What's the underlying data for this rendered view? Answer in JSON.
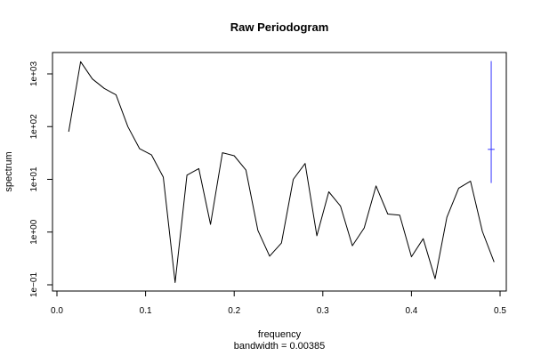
{
  "chart_data": {
    "type": "line",
    "title": "Raw Periodogram",
    "xlabel": "frequency",
    "sublabel": "bandwidth = 0.00385",
    "ylabel": "spectrum",
    "x_scale": "linear",
    "y_scale": "log",
    "xlim": [
      0,
      0.5
    ],
    "ylim": [
      0.1,
      1000
    ],
    "x_ticks": [
      0,
      0.1,
      0.2,
      0.3,
      0.4,
      0.5
    ],
    "x_tick_labels": [
      "0.0",
      "0.1",
      "0.2",
      "0.3",
      "0.4",
      "0.5"
    ],
    "y_ticks": [
      0.1,
      1,
      10,
      100,
      1000
    ],
    "y_tick_labels": [
      "1e−01",
      "1e+00",
      "1e+01",
      "1e+02",
      "1e+03"
    ],
    "series": [
      {
        "color": "#000000",
        "x": [
          0.0133,
          0.0267,
          0.04,
          0.0533,
          0.0667,
          0.08,
          0.0933,
          0.1067,
          0.12,
          0.1333,
          0.1467,
          0.16,
          0.1733,
          0.1867,
          0.2,
          0.2133,
          0.2267,
          0.24,
          0.2533,
          0.2667,
          0.28,
          0.2933,
          0.3067,
          0.32,
          0.3333,
          0.3467,
          0.36,
          0.3733,
          0.3867,
          0.4,
          0.4133,
          0.4267,
          0.44,
          0.4533,
          0.4667,
          0.48,
          0.4933
        ],
        "y": [
          80,
          1700,
          800,
          530,
          400,
          100,
          38,
          29,
          11,
          0.11,
          12,
          16,
          1.4,
          32,
          28,
          15,
          1.08,
          0.35,
          0.62,
          10,
          20,
          0.85,
          5.8,
          3.1,
          0.55,
          1.2,
          7.5,
          2.2,
          2.1,
          0.34,
          0.75,
          0.13,
          1.9,
          6.8,
          9.2,
          1.03,
          0.27
        ]
      }
    ],
    "bandwidth_indicator": {
      "color": "#3333ff",
      "x": 0.49,
      "y_low": 8.5,
      "y_mid": 37,
      "y_high": 1750,
      "half_width": 0.00385
    }
  }
}
